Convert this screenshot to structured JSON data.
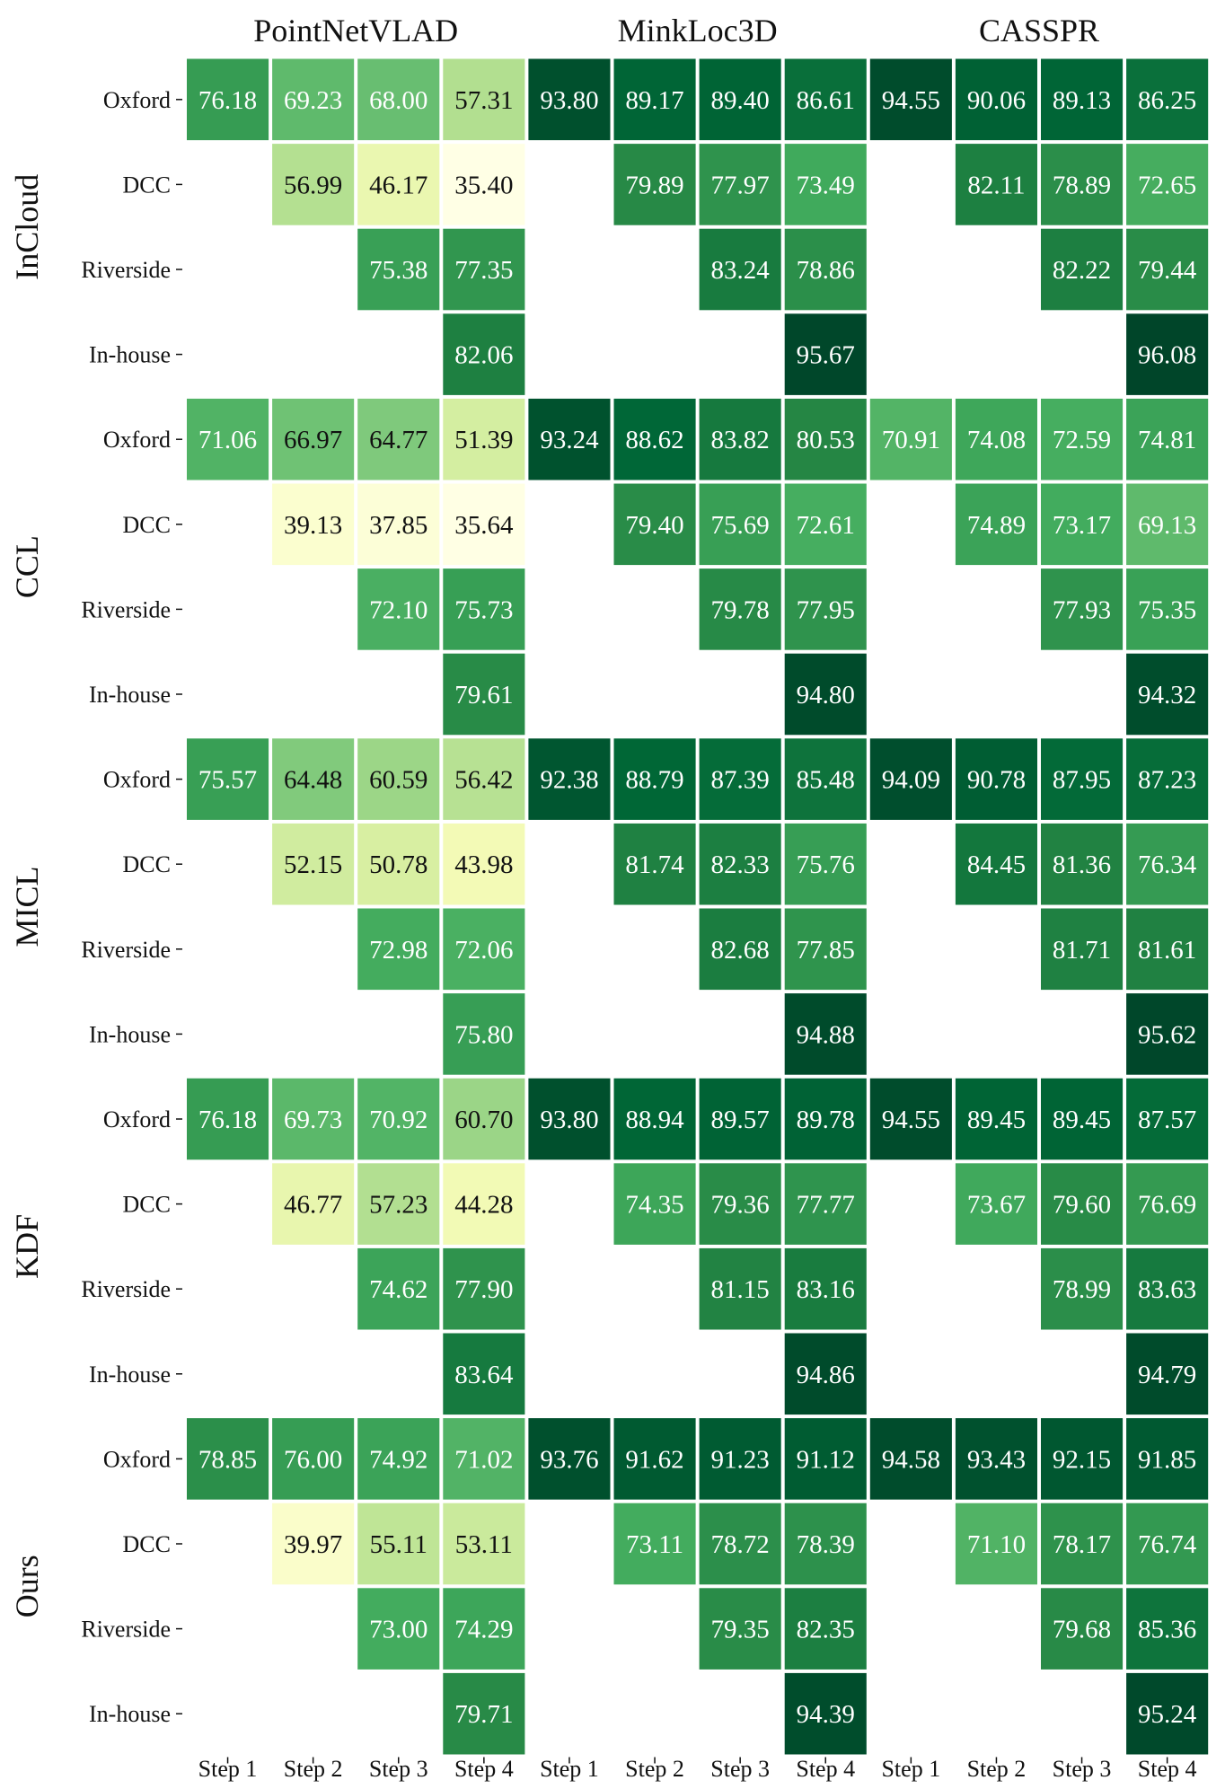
{
  "chart_data": {
    "type": "heatmap",
    "model_titles": [
      "PointNetVLAD",
      "MinkLoc3D",
      "CASSPR"
    ],
    "step_labels": [
      "Step 1",
      "Step 2",
      "Step 3",
      "Step 4"
    ],
    "row_labels": [
      "Oxford",
      "DCC",
      "Riverside",
      "In-house"
    ],
    "value_range": [
      35.4,
      96.08
    ],
    "colormap": "YlGn",
    "groups": [
      {
        "name": "InCloud",
        "rows": [
          [
            [
              76.18,
              69.23,
              68.0,
              57.31
            ],
            [
              93.8,
              89.17,
              89.4,
              86.61
            ],
            [
              94.55,
              90.06,
              89.13,
              86.25
            ]
          ],
          [
            [
              null,
              56.99,
              46.17,
              35.4
            ],
            [
              null,
              79.89,
              77.97,
              73.49
            ],
            [
              null,
              82.11,
              78.89,
              72.65
            ]
          ],
          [
            [
              null,
              null,
              75.38,
              77.35
            ],
            [
              null,
              null,
              83.24,
              78.86
            ],
            [
              null,
              null,
              82.22,
              79.44
            ]
          ],
          [
            [
              null,
              null,
              null,
              82.06
            ],
            [
              null,
              null,
              null,
              95.67
            ],
            [
              null,
              null,
              null,
              96.08
            ]
          ]
        ]
      },
      {
        "name": "CCL",
        "rows": [
          [
            [
              71.06,
              66.97,
              64.77,
              51.39
            ],
            [
              93.24,
              88.62,
              83.82,
              80.53
            ],
            [
              70.91,
              74.08,
              72.59,
              74.81
            ]
          ],
          [
            [
              null,
              39.13,
              37.85,
              35.64
            ],
            [
              null,
              79.4,
              75.69,
              72.61
            ],
            [
              null,
              74.89,
              73.17,
              69.13
            ]
          ],
          [
            [
              null,
              null,
              72.1,
              75.73
            ],
            [
              null,
              null,
              79.78,
              77.95
            ],
            [
              null,
              null,
              77.93,
              75.35
            ]
          ],
          [
            [
              null,
              null,
              null,
              79.61
            ],
            [
              null,
              null,
              null,
              94.8
            ],
            [
              null,
              null,
              null,
              94.32
            ]
          ]
        ]
      },
      {
        "name": "MICL",
        "rows": [
          [
            [
              75.57,
              64.48,
              60.59,
              56.42
            ],
            [
              92.38,
              88.79,
              87.39,
              85.48
            ],
            [
              94.09,
              90.78,
              87.95,
              87.23
            ]
          ],
          [
            [
              null,
              52.15,
              50.78,
              43.98
            ],
            [
              null,
              81.74,
              82.33,
              75.76
            ],
            [
              null,
              84.45,
              81.36,
              76.34
            ]
          ],
          [
            [
              null,
              null,
              72.98,
              72.06
            ],
            [
              null,
              null,
              82.68,
              77.85
            ],
            [
              null,
              null,
              81.71,
              81.61
            ]
          ],
          [
            [
              null,
              null,
              null,
              75.8
            ],
            [
              null,
              null,
              null,
              94.88
            ],
            [
              null,
              null,
              null,
              95.62
            ]
          ]
        ]
      },
      {
        "name": "KDF",
        "rows": [
          [
            [
              76.18,
              69.73,
              70.92,
              60.7
            ],
            [
              93.8,
              88.94,
              89.57,
              89.78
            ],
            [
              94.55,
              89.45,
              89.45,
              87.57
            ]
          ],
          [
            [
              null,
              46.77,
              57.23,
              44.28
            ],
            [
              null,
              74.35,
              79.36,
              77.77
            ],
            [
              null,
              73.67,
              79.6,
              76.69
            ]
          ],
          [
            [
              null,
              null,
              74.62,
              77.9
            ],
            [
              null,
              null,
              81.15,
              83.16
            ],
            [
              null,
              null,
              78.99,
              83.63
            ]
          ],
          [
            [
              null,
              null,
              null,
              83.64
            ],
            [
              null,
              null,
              null,
              94.86
            ],
            [
              null,
              null,
              null,
              94.79
            ]
          ]
        ]
      },
      {
        "name": "Ours",
        "rows": [
          [
            [
              78.85,
              76.0,
              74.92,
              71.02
            ],
            [
              93.76,
              91.62,
              91.23,
              91.12
            ],
            [
              94.58,
              93.43,
              92.15,
              91.85
            ]
          ],
          [
            [
              null,
              39.97,
              55.11,
              53.11
            ],
            [
              null,
              73.11,
              78.72,
              78.39
            ],
            [
              null,
              71.1,
              78.17,
              76.74
            ]
          ],
          [
            [
              null,
              null,
              73.0,
              74.29
            ],
            [
              null,
              null,
              79.35,
              82.35
            ],
            [
              null,
              null,
              79.68,
              85.36
            ]
          ],
          [
            [
              null,
              null,
              null,
              79.71
            ],
            [
              null,
              null,
              null,
              94.39
            ],
            [
              null,
              null,
              null,
              95.24
            ]
          ]
        ]
      }
    ]
  }
}
